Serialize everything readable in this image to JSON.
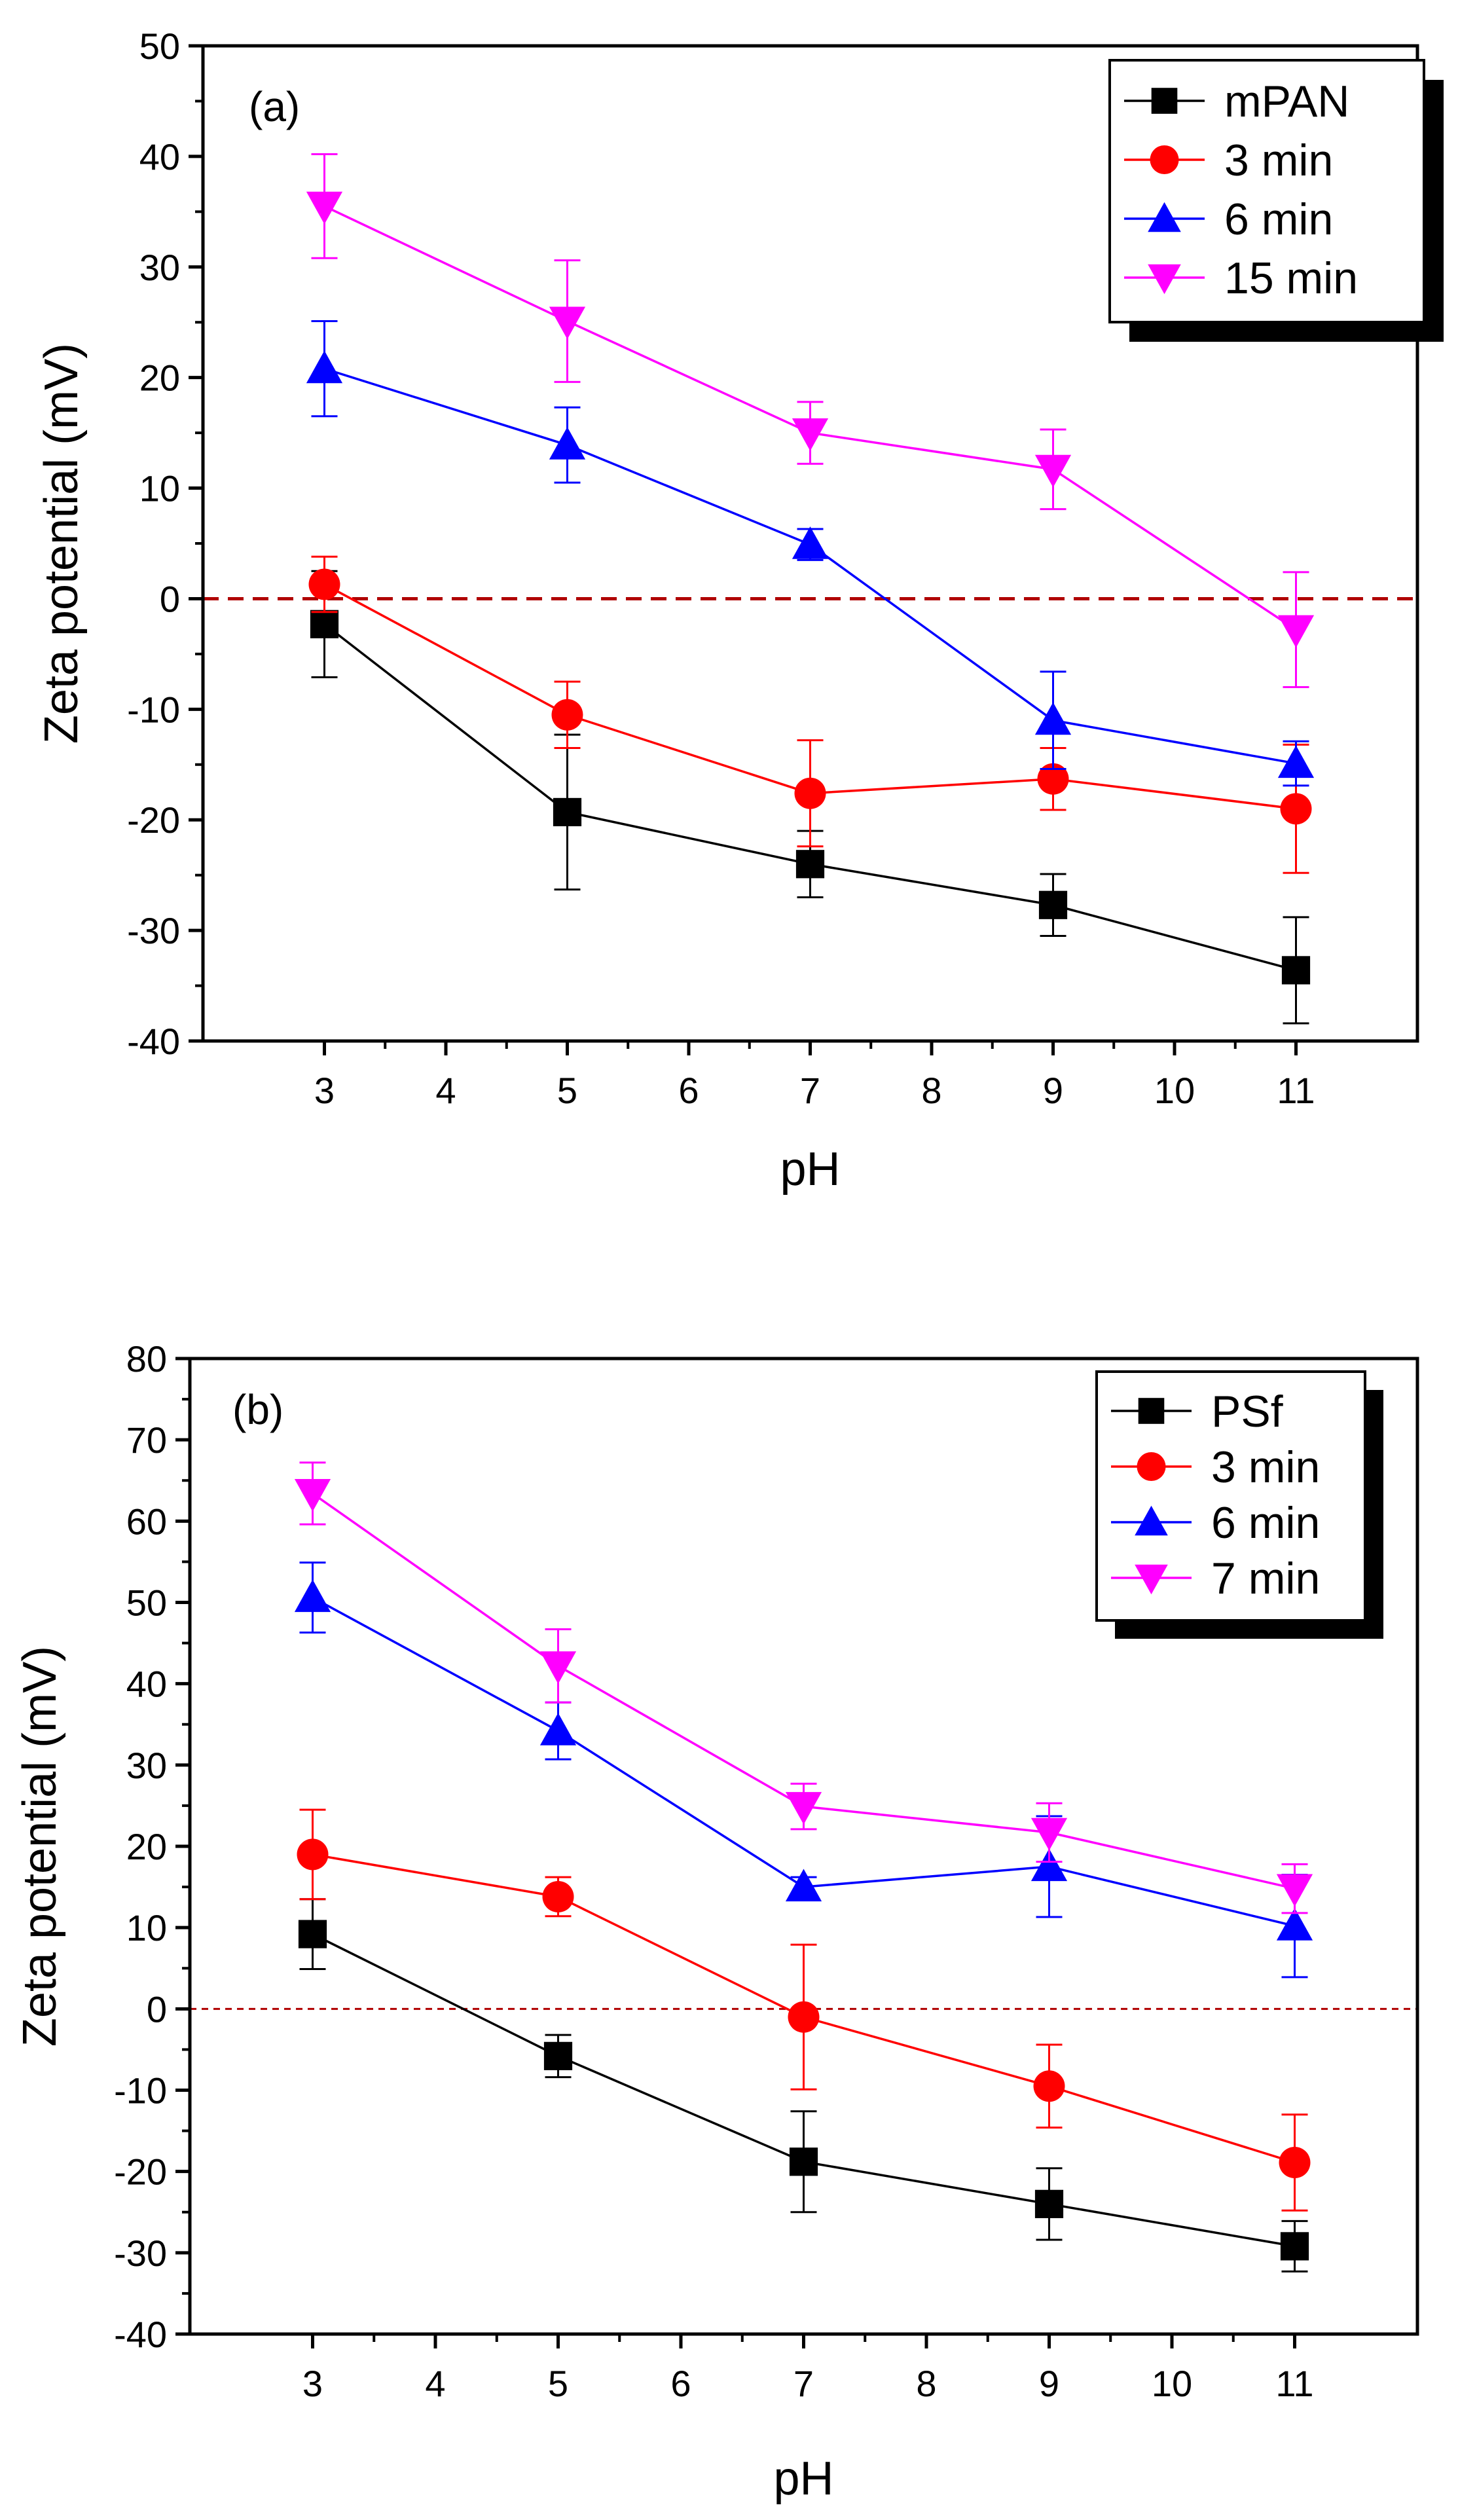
{
  "chart_data": [
    {
      "type": "line",
      "panel_label": "(a)",
      "xlabel": "pH",
      "ylabel": "Zeta potential (mV)",
      "xlim": [
        2,
        12
      ],
      "ylim": [
        -40,
        50
      ],
      "xticks": [
        3,
        4,
        5,
        6,
        7,
        8,
        9,
        10,
        11
      ],
      "yticks": [
        -40,
        -30,
        -20,
        -10,
        0,
        10,
        20,
        30,
        40,
        50
      ],
      "reference_line": 0,
      "legend_position": "top-right",
      "x": [
        3,
        5,
        7,
        9,
        11
      ],
      "series": [
        {
          "name": "mPAN",
          "color": "#000000",
          "marker": "square",
          "values": [
            -2.3,
            -19.3,
            -24.0,
            -27.7,
            -33.6
          ],
          "errors": [
            4.8,
            7.0,
            3.0,
            2.8,
            4.8
          ]
        },
        {
          "name": "3 min",
          "color": "#ff0000",
          "marker": "circle",
          "values": [
            1.3,
            -10.5,
            -17.6,
            -16.3,
            -19.0
          ],
          "errors": [
            2.5,
            3.0,
            4.8,
            2.8,
            5.8
          ]
        },
        {
          "name": "6 min",
          "color": "#0000ff",
          "marker": "triangle-up",
          "values": [
            20.8,
            13.9,
            4.9,
            -11.0,
            -14.9
          ],
          "errors": [
            4.3,
            3.4,
            1.4,
            4.4,
            2.0
          ]
        },
        {
          "name": "15 min",
          "color": "#ff00ff",
          "marker": "triangle-down",
          "values": [
            35.5,
            25.1,
            15.0,
            11.7,
            -2.8
          ],
          "errors": [
            4.7,
            5.5,
            2.8,
            3.6,
            5.2
          ]
        }
      ]
    },
    {
      "type": "line",
      "panel_label": "(b)",
      "xlabel": "pH",
      "ylabel": "Zeta potential (mV)",
      "xlim": [
        2,
        12
      ],
      "ylim": [
        -40,
        80
      ],
      "xticks": [
        3,
        4,
        5,
        6,
        7,
        8,
        9,
        10,
        11
      ],
      "yticks": [
        -40,
        -30,
        -20,
        -10,
        0,
        10,
        20,
        30,
        40,
        50,
        60,
        70,
        80
      ],
      "reference_line": 0,
      "legend_position": "top-right",
      "x": [
        3,
        5,
        7,
        9,
        11
      ],
      "series": [
        {
          "name": "PSf",
          "color": "#000000",
          "marker": "square",
          "values": [
            9.2,
            -5.8,
            -18.8,
            -24.0,
            -29.2
          ],
          "errors": [
            4.3,
            2.6,
            6.2,
            4.4,
            3.1
          ]
        },
        {
          "name": "3 min",
          "color": "#ff0000",
          "marker": "circle",
          "values": [
            19.0,
            13.8,
            -1.0,
            -9.5,
            -18.9
          ],
          "errors": [
            5.5,
            2.4,
            8.9,
            5.1,
            5.9
          ]
        },
        {
          "name": "6 min",
          "color": "#0000ff",
          "marker": "triangle-up",
          "values": [
            50.6,
            34.2,
            15.0,
            17.5,
            10.2
          ],
          "errors": [
            4.3,
            3.5,
            1.2,
            6.2,
            6.3
          ]
        },
        {
          "name": "7 min",
          "color": "#ff00ff",
          "marker": "triangle-down",
          "values": [
            63.4,
            42.2,
            24.9,
            21.7,
            14.8
          ],
          "errors": [
            3.8,
            4.5,
            2.8,
            3.6,
            3.0
          ]
        }
      ]
    }
  ]
}
